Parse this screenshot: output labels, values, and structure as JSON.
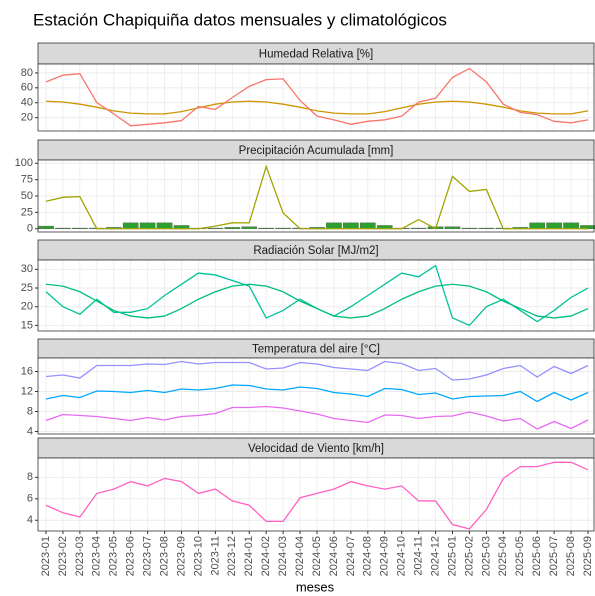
{
  "title": "Estación Chapiquiña datos mensuales y climatológicos",
  "x_label": "meses",
  "categories": [
    "2023-01",
    "2023-02",
    "2023-03",
    "2023-04",
    "2023-05",
    "2023-06",
    "2023-07",
    "2023-08",
    "2023-09",
    "2023-10",
    "2023-11",
    "2023-12",
    "2024-01",
    "2024-02",
    "2024-03",
    "2024-04",
    "2024-05",
    "2024-06",
    "2024-07",
    "2024-08",
    "2024-09",
    "2024-10",
    "2024-11",
    "2024-12",
    "2025-01",
    "2025-02",
    "2025-03",
    "2025-04",
    "2025-05",
    "2025-06",
    "2025-07",
    "2025-08",
    "2025-09"
  ],
  "chart_data": [
    {
      "type": "line",
      "title": "Humedad Relativa [%]",
      "ylim": [
        2,
        92
      ],
      "yticks": [
        20,
        40,
        60,
        80
      ],
      "grid": true,
      "series": [
        {
          "color": "#CD9600",
          "values": [
            42,
            41,
            38,
            34,
            29,
            26,
            25,
            25,
            28,
            33,
            38,
            41,
            42,
            41,
            38,
            34,
            29,
            26,
            25,
            25,
            28,
            33,
            38,
            41,
            42,
            41,
            38,
            34,
            29,
            26,
            25,
            25,
            29
          ]
        },
        {
          "color": "#F8766D",
          "values": [
            68,
            77,
            79,
            40,
            25,
            9,
            11,
            13,
            16,
            35,
            31,
            47,
            62,
            71,
            72,
            43,
            22,
            17,
            11,
            15,
            17,
            22,
            41,
            46,
            74,
            86,
            68,
            38,
            27,
            24,
            15,
            13,
            17
          ]
        }
      ]
    },
    {
      "type": "line",
      "title": "Precipitación Acumulada [mm]",
      "ylim": [
        -5,
        105
      ],
      "yticks": [
        0,
        25,
        50,
        75,
        100
      ],
      "grid": true,
      "series": [
        {
          "type": "bar",
          "color": "#2CA02C",
          "values": [
            4,
            1,
            1,
            1,
            2,
            9,
            9,
            9,
            5,
            1,
            1,
            2,
            3,
            1,
            1,
            1,
            2,
            9,
            9,
            9,
            5,
            1,
            1,
            3,
            3,
            1,
            1,
            1,
            2,
            9,
            9,
            9,
            5
          ]
        },
        {
          "color": "#A3A500",
          "values": [
            42,
            48,
            49,
            0,
            0,
            0,
            0,
            0,
            0,
            0,
            4,
            9,
            9,
            95,
            24,
            0,
            0,
            0,
            0,
            0,
            0,
            0,
            14,
            0,
            80,
            57,
            60,
            0,
            0,
            0,
            0,
            0,
            0
          ]
        }
      ]
    },
    {
      "type": "line",
      "title": "Radiación Solar [MJ/m2]",
      "ylim": [
        13.5,
        32.5
      ],
      "yticks": [
        15,
        20,
        25,
        30
      ],
      "grid": true,
      "series": [
        {
          "color": "#00C19A",
          "values": [
            24,
            20,
            18,
            22,
            18.5,
            18.5,
            19.5,
            23,
            26,
            29,
            28.5,
            27,
            25.5,
            17,
            19,
            22,
            19.5,
            17.5,
            20,
            23,
            26,
            29,
            28,
            31,
            17,
            15,
            20,
            22,
            19,
            16,
            19,
            22.5,
            25
          ]
        },
        {
          "color": "#00BF7D",
          "values": [
            26,
            25.5,
            24,
            21.5,
            19,
            17.5,
            17,
            17.5,
            19.5,
            22,
            24,
            25.5,
            26,
            25.5,
            24,
            21.5,
            19.5,
            17.5,
            17,
            17.5,
            19.5,
            22,
            24,
            25.5,
            26,
            25.5,
            24,
            21.5,
            19.5,
            17.5,
            17,
            17.5,
            19.5
          ]
        }
      ]
    },
    {
      "type": "line",
      "title": "Temperatura del aire [°C]",
      "ylim": [
        3.5,
        18.7
      ],
      "yticks": [
        4,
        8,
        12,
        16
      ],
      "grid": true,
      "series": [
        {
          "color": "#9590FF",
          "values": [
            15,
            15.3,
            14.7,
            17.2,
            17.2,
            17.2,
            17.5,
            17.4,
            18,
            17.5,
            17.8,
            17.8,
            17.8,
            16.5,
            16.7,
            17.8,
            17.5,
            16.8,
            16.5,
            16.2,
            18,
            17.6,
            16.2,
            16.6,
            14.3,
            14.5,
            15.3,
            16.6,
            17.2,
            14.9,
            17,
            15.6,
            17.2
          ]
        },
        {
          "color": "#00A9FF",
          "values": [
            10.5,
            11.2,
            10.8,
            12.1,
            12,
            11.8,
            12.2,
            11.8,
            12.5,
            12.3,
            12.6,
            13.3,
            13.2,
            12.5,
            12.3,
            12.9,
            12.6,
            11.8,
            11.5,
            11,
            12.6,
            12.4,
            11.4,
            11.7,
            10.5,
            11,
            11.1,
            11.2,
            12,
            10,
            11.8,
            10.3,
            11.8
          ]
        },
        {
          "color": "#E76BF3",
          "values": [
            6.2,
            7.4,
            7.2,
            7,
            6.6,
            6.2,
            6.8,
            6.3,
            7,
            7.2,
            7.6,
            8.8,
            8.8,
            9,
            8.7,
            8.1,
            7.5,
            6.6,
            6.2,
            5.8,
            7.3,
            7.2,
            6.6,
            7,
            7.1,
            7.9,
            7.1,
            6.1,
            6.6,
            4.5,
            6,
            4.6,
            6.3
          ]
        }
      ]
    },
    {
      "type": "line",
      "title": "Velocidad de Viento [km/h]",
      "ylim": [
        3,
        9.8
      ],
      "yticks": [
        4,
        6,
        8
      ],
      "grid": true,
      "series": [
        {
          "color": "#FF61C3",
          "values": [
            5.4,
            4.7,
            4.3,
            6.5,
            6.9,
            7.6,
            7.2,
            7.9,
            7.6,
            6.5,
            6.9,
            5.8,
            5.4,
            3.9,
            3.9,
            6.1,
            6.5,
            6.9,
            7.6,
            7.2,
            6.9,
            7.2,
            5.8,
            5.8,
            3.6,
            3.2,
            5,
            7.9,
            9,
            9,
            9.4,
            9.4,
            8.7
          ]
        }
      ]
    }
  ]
}
